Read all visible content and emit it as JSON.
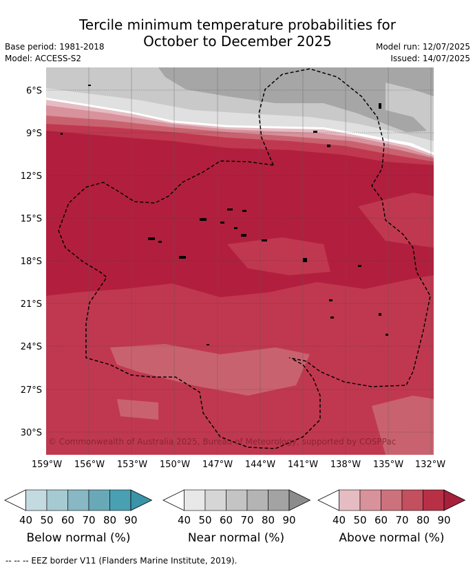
{
  "header": {
    "title_line1": "Tercile minimum temperature probabilities for",
    "title_line2": "October to December 2025",
    "base_period": "Base period: 1981-2018",
    "model": "Model: ACCESS-S2",
    "model_run": "Model run: 12/07/2025",
    "issued": "Issued: 14/07/2025"
  },
  "map": {
    "lat_labels": [
      "6°S",
      "9°S",
      "12°S",
      "15°S",
      "18°S",
      "21°S",
      "24°S",
      "27°S",
      "30°S"
    ],
    "lon_labels": [
      "159°W",
      "156°W",
      "153°W",
      "150°W",
      "147°W",
      "144°W",
      "141°W",
      "138°W",
      "135°W",
      "132°W"
    ],
    "copyright": "© Commonwealth of Australia 2025, Bureau of Meteorology, supported by COSPPac"
  },
  "legend": {
    "ticks": [
      "40",
      "50",
      "60",
      "70",
      "80",
      "90"
    ],
    "below": {
      "label": "Below normal (%)",
      "colors": [
        "#ffffff",
        "#c3dae0",
        "#a6cad2",
        "#87b8c4",
        "#69a9b7",
        "#4aa0b3",
        "#3994a8"
      ]
    },
    "near": {
      "label": "Near normal (%)",
      "colors": [
        "#ffffff",
        "#e8e8e8",
        "#d6d6d6",
        "#c4c4c4",
        "#b4b4b4",
        "#a3a3a3",
        "#8c8c8c"
      ]
    },
    "above": {
      "label": "Above normal (%)",
      "colors": [
        "#ffffff",
        "#e6bcc3",
        "#d8929c",
        "#cc727c",
        "#c2505f",
        "#b83046",
        "#a61f3b"
      ]
    }
  },
  "footnote": "--  --  -- EEZ border V11 (Flanders Marine Institute, 2019)."
}
